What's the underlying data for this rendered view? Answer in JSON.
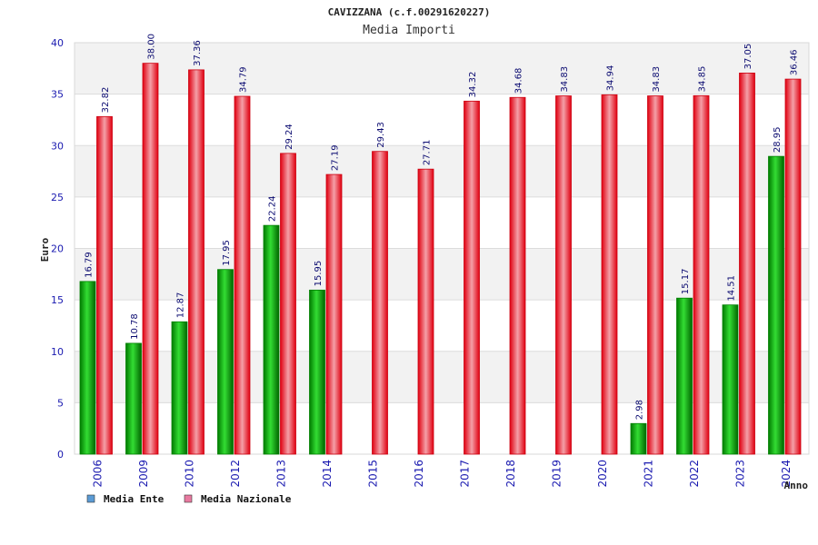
{
  "chart_data": {
    "type": "bar",
    "title": "CAVIZZANA (c.f.00291620227)",
    "subtitle": "Media Importi",
    "xlabel": "Anno",
    "ylabel": "Euro",
    "ylim": [
      0,
      40
    ],
    "yticks": [
      0,
      5,
      10,
      15,
      20,
      25,
      30,
      35,
      40
    ],
    "grid": true,
    "legend_position": "bottom-left",
    "categories": [
      "2006",
      "2009",
      "2010",
      "2012",
      "2013",
      "2014",
      "2015",
      "2016",
      "2017",
      "2018",
      "2019",
      "2020",
      "2021",
      "2022",
      "2023",
      "2024"
    ],
    "series": [
      {
        "name": "Media Ente",
        "color": "#00b000",
        "legend_color": "#5b9bd5",
        "values": [
          16.79,
          10.78,
          12.87,
          17.95,
          22.24,
          15.95,
          null,
          null,
          null,
          null,
          null,
          null,
          2.98,
          15.17,
          14.51,
          28.95
        ],
        "labels": [
          "16.79",
          "10.78",
          "12.87",
          "17.95",
          "22.24",
          "15.95",
          null,
          null,
          null,
          null,
          null,
          null,
          "2.98",
          "15.17",
          "14.51",
          "28.95"
        ]
      },
      {
        "name": "Media Nazionale",
        "color": "#ee1c25",
        "legend_color": "#e87aa0",
        "values": [
          32.82,
          38.0,
          37.36,
          34.79,
          29.24,
          27.19,
          29.43,
          27.71,
          34.32,
          34.68,
          34.83,
          34.94,
          34.83,
          34.85,
          37.05,
          36.46
        ],
        "labels": [
          "32.82",
          "38.00",
          "37.36",
          "34.79",
          "29.24",
          "27.19",
          "29.43",
          "27.71",
          "34.32",
          "34.68",
          "34.83",
          "34.94",
          "34.83",
          "34.85",
          "37.05",
          "36.46"
        ]
      }
    ]
  }
}
